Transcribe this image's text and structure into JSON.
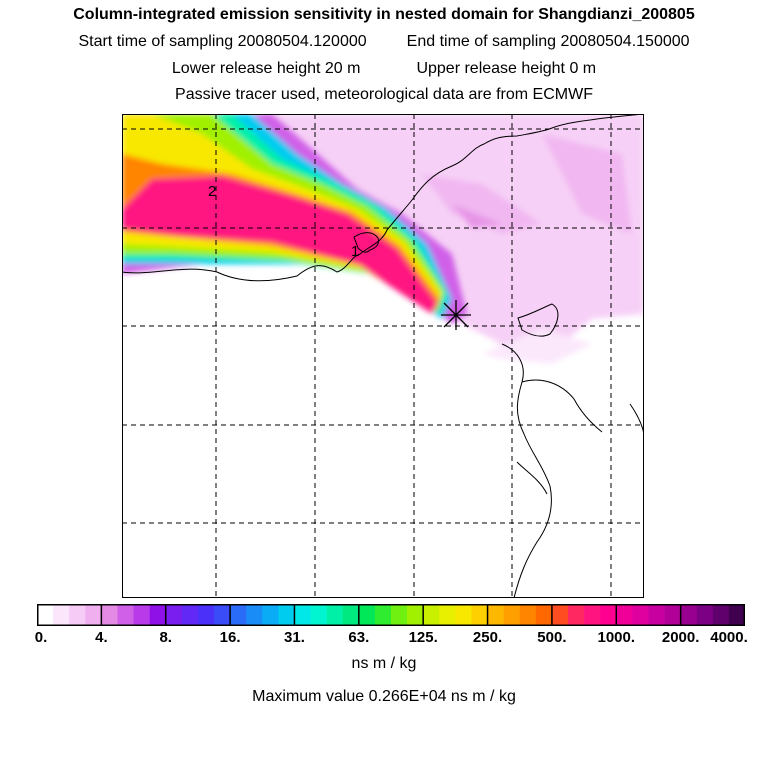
{
  "header": {
    "title": "Column-integrated emission sensitivity in nested domain for Shangdianzi_200805",
    "start_label": "Start time of sampling 20080504.120000",
    "end_label": "End time of sampling 20080504.150000",
    "lower_label": "Lower release height   20 m",
    "upper_label": "Upper release height    0 m",
    "note": "Passive tracer used, meteorological data are from ECMWF"
  },
  "map": {
    "markers": [
      {
        "label": "2",
        "kind": "trajectory-label"
      },
      {
        "label": "1",
        "kind": "trajectory-label"
      }
    ],
    "release_site": "star-marker-icon"
  },
  "colorbar": {
    "tick_labels": [
      "0.",
      "4.",
      "8.",
      "16.",
      "31.",
      "63.",
      "125.",
      "250.",
      "500.",
      "1000.",
      "2000.",
      "4000."
    ],
    "colors": [
      "#ffffff",
      "#fbe6fb",
      "#f6ccf6",
      "#f0b0f0",
      "#e48ae4",
      "#d060e8",
      "#b83ae8",
      "#9010e8",
      "#7a1ef0",
      "#6228f5",
      "#4a30f8",
      "#3a4cf8",
      "#2a6cf8",
      "#1a8cf8",
      "#0aacf5",
      "#00ccf0",
      "#00e8e8",
      "#00f5d0",
      "#00f0a8",
      "#00e880",
      "#00e858",
      "#30ec30",
      "#70f010",
      "#a0f000",
      "#c8f000",
      "#e8f000",
      "#f8e800",
      "#ffd000",
      "#ffb800",
      "#ffa000",
      "#ff8400",
      "#ff6800",
      "#ff4c20",
      "#ff2860",
      "#ff1480",
      "#ff0090",
      "#f00098",
      "#e000a0",
      "#c800a0",
      "#b00098",
      "#980090",
      "#7c0084",
      "#60006c",
      "#400050"
    ],
    "units": "ns m / kg",
    "max_value_text": "Maximum value  0.266E+04 ns m / kg"
  }
}
